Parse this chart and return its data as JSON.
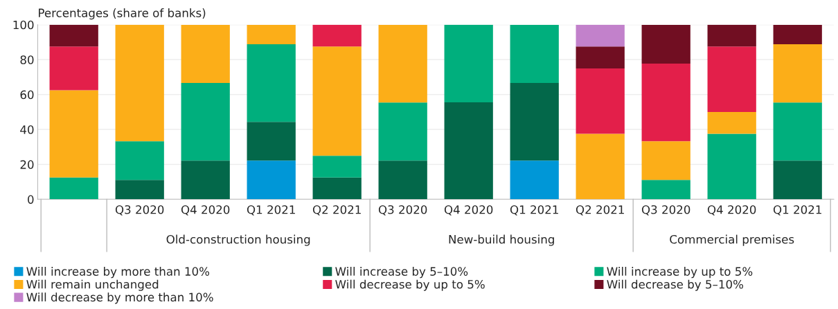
{
  "chart_data": {
    "type": "bar",
    "stacked": true,
    "ylabel": "Percentages (share of banks)",
    "categories": [
      null,
      "Q3 2020",
      "Q4 2020",
      "Q1 2021",
      "Q2 2021",
      "Q3 2020",
      "Q4 2020",
      "Q1 2021",
      "Q2 2021",
      "Q3 2020",
      "Q4 2020",
      "Q1 2021"
    ],
    "annotations": [
      "Old-construction housing",
      "New-build housing",
      "Commercial premises"
    ],
    "series": [
      {
        "name": "Will increase by more than 10%",
        "color": "#0097d7",
        "values": [
          null,
          null,
          null,
          22.2,
          null,
          null,
          null,
          22.2,
          null,
          null,
          null,
          null
        ]
      },
      {
        "name": "Will increase by 5–10%",
        "color": "#03684a",
        "values": [
          null,
          11.1,
          22.2,
          22.2,
          12.5,
          22.2,
          55.6,
          44.4,
          null,
          null,
          null,
          22.2
        ]
      },
      {
        "name": "Will increase by up to 5%",
        "color": "#00af7d",
        "values": [
          12.5,
          22.2,
          44.4,
          44.4,
          12.5,
          33.3,
          44.4,
          33.3,
          null,
          11.1,
          37.5,
          33.3
        ]
      },
      {
        "name": "Will remain unchanged",
        "color": "#fcae18",
        "values": [
          50,
          66.7,
          33.3,
          11.1,
          62.5,
          44.4,
          null,
          null,
          37.5,
          22.2,
          12.5,
          33.3
        ]
      },
      {
        "name": "Will decrease by up to 5%",
        "color": "#e31f4a",
        "values": [
          25,
          null,
          null,
          null,
          12.5,
          null,
          null,
          null,
          37.5,
          44.4,
          37.5,
          null
        ]
      },
      {
        "name": "Will decrease by 5–10%",
        "color": "#710e22",
        "values": [
          12.5,
          null,
          null,
          null,
          null,
          null,
          null,
          null,
          12.5,
          22.2,
          12.5,
          11.1
        ]
      },
      {
        "name": "Will decrease by more than 10%",
        "color": "#c281cb",
        "values": [
          null,
          null,
          null,
          null,
          null,
          null,
          null,
          null,
          12.5,
          null,
          null,
          null
        ]
      }
    ],
    "ylim": [
      0,
      100
    ],
    "yticks": [
      0,
      20,
      40,
      60,
      80,
      100
    ],
    "grid": "y",
    "legend": "bottom"
  }
}
